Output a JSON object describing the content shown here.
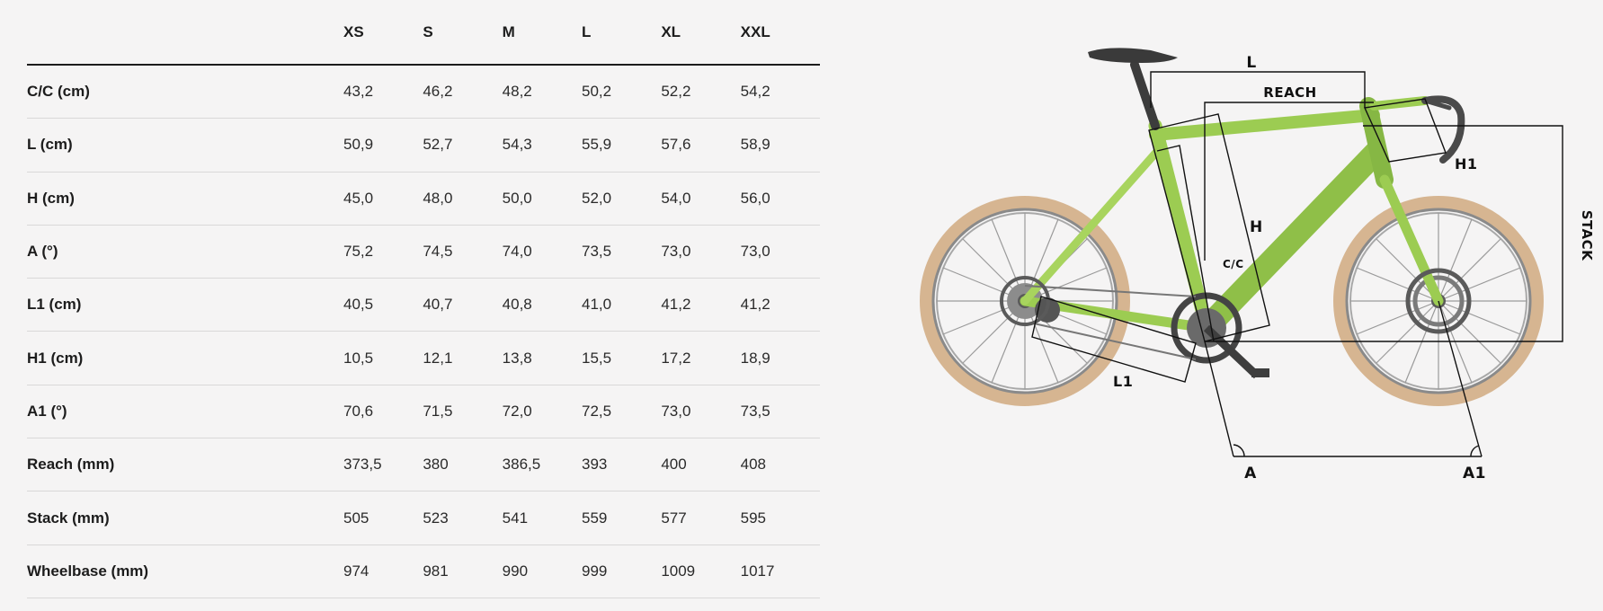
{
  "table": {
    "corner": "",
    "sizes": [
      "XS",
      "S",
      "M",
      "L",
      "XL",
      "XXL"
    ],
    "rows": [
      {
        "label": "C/C (cm)",
        "values": [
          "43,2",
          "46,2",
          "48,2",
          "50,2",
          "52,2",
          "54,2"
        ]
      },
      {
        "label": "L (cm)",
        "values": [
          "50,9",
          "52,7",
          "54,3",
          "55,9",
          "57,6",
          "58,9"
        ]
      },
      {
        "label": "H (cm)",
        "values": [
          "45,0",
          "48,0",
          "50,0",
          "52,0",
          "54,0",
          "56,0"
        ]
      },
      {
        "label": "A (°)",
        "values": [
          "75,2",
          "74,5",
          "74,0",
          "73,5",
          "73,0",
          "73,0"
        ]
      },
      {
        "label": "L1 (cm)",
        "values": [
          "40,5",
          "40,7",
          "40,8",
          "41,0",
          "41,2",
          "41,2"
        ]
      },
      {
        "label": "H1 (cm)",
        "values": [
          "10,5",
          "12,1",
          "13,8",
          "15,5",
          "17,2",
          "18,9"
        ]
      },
      {
        "label": "A1 (°)",
        "values": [
          "70,6",
          "71,5",
          "72,0",
          "72,5",
          "73,0",
          "73,5"
        ]
      },
      {
        "label": "Reach (mm)",
        "values": [
          "373,5",
          "380",
          "386,5",
          "393",
          "400",
          "408"
        ]
      },
      {
        "label": "Stack (mm)",
        "values": [
          "505",
          "523",
          "541",
          "559",
          "577",
          "595"
        ]
      },
      {
        "label": "Wheelbase (mm)",
        "values": [
          "974",
          "981",
          "990",
          "999",
          "1009",
          "1017"
        ]
      }
    ]
  },
  "diagram": {
    "labels": {
      "l": "L",
      "reach": "REACH",
      "h1": "H1",
      "h": "H",
      "cc": "C/C",
      "stack": "STACK",
      "l1": "L1",
      "a": "A",
      "a1": "A1"
    },
    "frame_color": "#9ccc52",
    "tire_color": "#d8b08a",
    "line_color": "#111111"
  }
}
